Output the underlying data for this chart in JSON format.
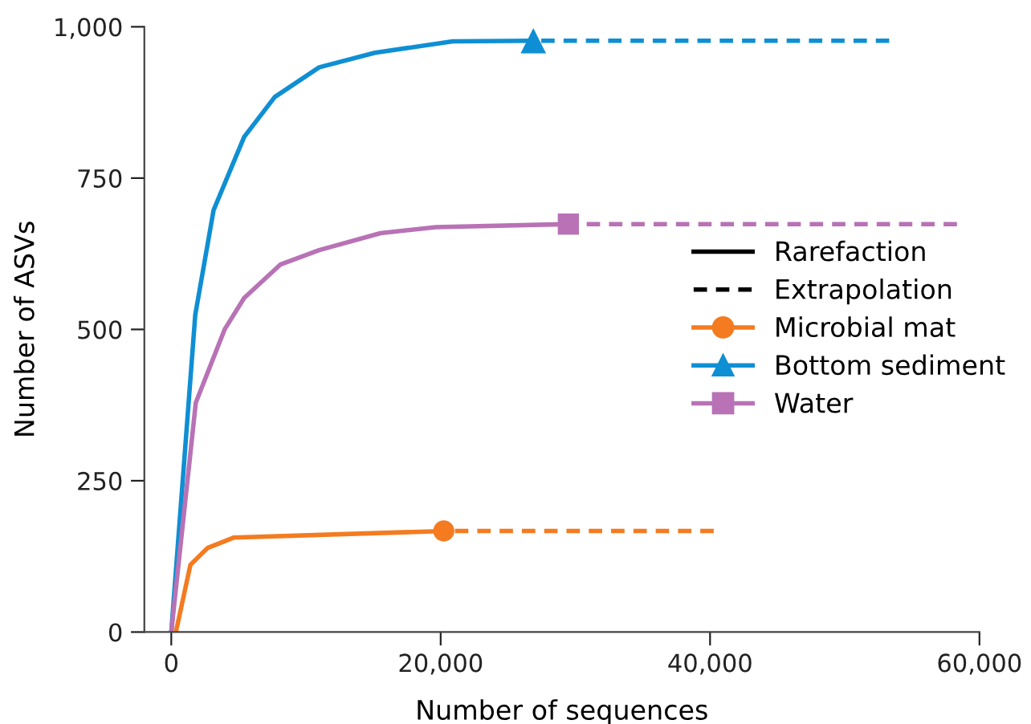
{
  "chart_data": {
    "type": "line",
    "xlabel": "Number of sequences",
    "ylabel": "Number of ASVs",
    "xlim": [
      -2000,
      60000
    ],
    "ylim": [
      0,
      1000
    ],
    "xticks": [
      0,
      {
        "value": 20000,
        "label": "20,000"
      },
      {
        "value": 40000,
        "label": "40,000"
      },
      {
        "value": 60000,
        "label": "60,000"
      }
    ],
    "yticks": [
      0,
      250,
      500,
      750,
      {
        "value": 1000,
        "label": "1,000"
      }
    ],
    "legend": "right",
    "series": [
      {
        "name": "Rarefaction",
        "color": "#000000",
        "line_style": "solid"
      },
      {
        "name": "Extrapolation",
        "color": "#000000",
        "line_style": "dashed"
      },
      {
        "color": "#f47b20",
        "line_style": "solid",
        "x": [
          380,
          1420,
          2700,
          4620,
          20230
        ],
        "values": [
          4,
          111,
          139,
          156,
          167
        ]
      },
      {
        "color": "#0f8fd3",
        "line_style": "solid",
        "x": [
          0,
          1780,
          3140,
          5410,
          7680,
          10980,
          15110,
          20890,
          26880
        ],
        "values": [
          0,
          524,
          697,
          818,
          884,
          933,
          957,
          976,
          977
        ]
      },
      {
        "color": "#b872b5",
        "line_style": "solid",
        "x": [
          0,
          1820,
          3960,
          5410,
          8090,
          10980,
          15530,
          19650,
          29480
        ],
        "values": [
          0,
          379,
          500,
          552,
          607,
          631,
          659,
          669,
          674
        ]
      },
      {
        "color": "#f47b20",
        "line_style": "dashed",
        "x": [
          20230,
          40270
        ],
        "values": [
          167,
          167
        ]
      },
      {
        "color": "#0f8fd3",
        "line_style": "dashed",
        "x": [
          26880,
          53300
        ],
        "values": [
          977,
          977
        ]
      },
      {
        "color": "#b872b5",
        "line_style": "dashed",
        "x": [
          29480,
          58330
        ],
        "values": [
          674,
          674
        ]
      },
      {
        "type": "scatter",
        "name": "Microbial mat",
        "color": "#f47b20",
        "marker": "circle",
        "x": [
          20230
        ],
        "values": [
          167
        ]
      },
      {
        "type": "scatter",
        "name": "Bottom sediment",
        "color": "#0f8fd3",
        "marker": "triangle",
        "x": [
          26880
        ],
        "values": [
          977
        ]
      },
      {
        "type": "scatter",
        "name": "Water",
        "color": "#b872b5",
        "marker": "square",
        "x": [
          29480
        ],
        "values": [
          674
        ]
      }
    ]
  }
}
